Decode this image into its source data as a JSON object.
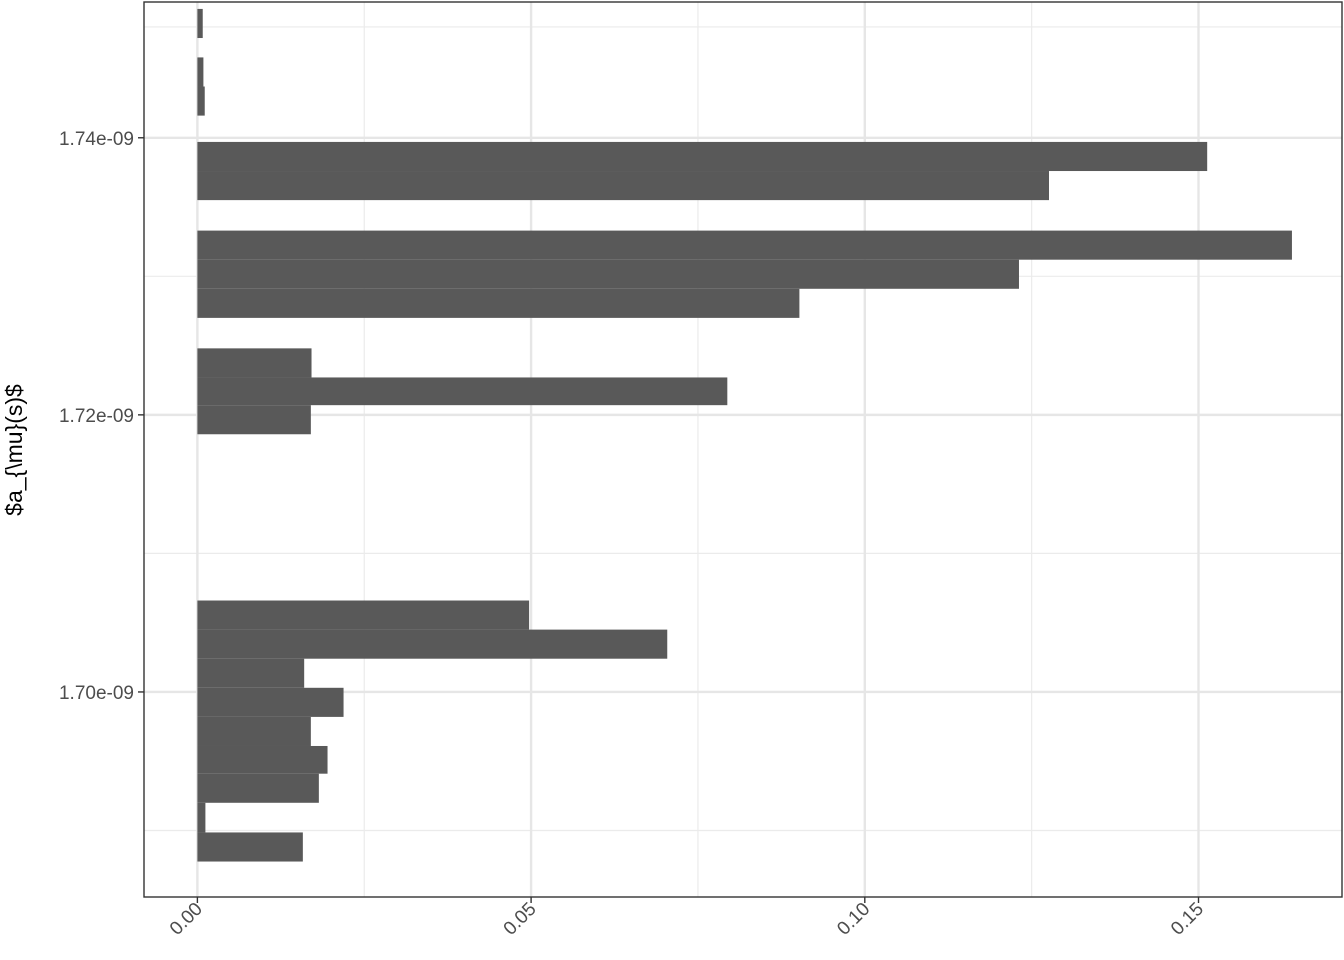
{
  "chart_data": {
    "type": "bar",
    "orientation": "horizontal",
    "xlabel": "",
    "ylabel": "$a_{\\mu}(s)$",
    "xlim": [
      -0.008,
      0.1715
    ],
    "ylim": [
      1.6852e-09,
      1.7498e-09
    ],
    "x_ticks": [
      {
        "value": 0.0,
        "label": "0.00"
      },
      {
        "value": 0.05,
        "label": "0.05"
      },
      {
        "value": 0.1,
        "label": "0.10"
      },
      {
        "value": 0.15,
        "label": "0.15"
      }
    ],
    "x_minor_ticks": [
      0.025,
      0.075,
      0.125
    ],
    "y_ticks": [
      {
        "value": 1.7e-09,
        "label": "1.70e-09"
      },
      {
        "value": 1.72e-09,
        "label": "1.72e-09"
      },
      {
        "value": 1.74e-09,
        "label": "1.74e-09"
      }
    ],
    "y_minor_ticks": [
      1.69e-09,
      1.71e-09,
      1.73e-09,
      1.748e-09
    ],
    "grid": true,
    "theme": "bw",
    "bar_color": "#595959",
    "bars": [
      {
        "y_low": 1.68776e-09,
        "y_high": 1.68986e-09,
        "value": 0.0158
      },
      {
        "y_low": 1.68986e-09,
        "y_high": 1.692e-09,
        "value": 0.0012
      },
      {
        "y_low": 1.692e-09,
        "y_high": 1.6941e-09,
        "value": 0.0182
      },
      {
        "y_low": 1.6941e-09,
        "y_high": 1.6961e-09,
        "value": 0.0195
      },
      {
        "y_low": 1.6961e-09,
        "y_high": 1.6982e-09,
        "value": 0.017
      },
      {
        "y_low": 1.6982e-09,
        "y_high": 1.7003e-09,
        "value": 0.0219
      },
      {
        "y_low": 1.7003e-09,
        "y_high": 1.7024e-09,
        "value": 0.016
      },
      {
        "y_low": 1.7024e-09,
        "y_high": 1.7045e-09,
        "value": 0.0704
      },
      {
        "y_low": 1.7045e-09,
        "y_high": 1.7066e-09,
        "value": 0.0497
      },
      {
        "y_low": 1.7186e-09,
        "y_high": 1.7207e-09,
        "value": 0.017
      },
      {
        "y_low": 1.7207e-09,
        "y_high": 1.7227e-09,
        "value": 0.0794
      },
      {
        "y_low": 1.7227e-09,
        "y_high": 1.7248e-09,
        "value": 0.0171
      },
      {
        "y_low": 1.727e-09,
        "y_high": 1.7291e-09,
        "value": 0.0902
      },
      {
        "y_low": 1.7291e-09,
        "y_high": 1.7312e-09,
        "value": 0.1231
      },
      {
        "y_low": 1.7312e-09,
        "y_high": 1.7333e-09,
        "value": 0.164
      },
      {
        "y_low": 1.7355e-09,
        "y_high": 1.7376e-09,
        "value": 0.1276
      },
      {
        "y_low": 1.7376e-09,
        "y_high": 1.7397e-09,
        "value": 0.1513
      },
      {
        "y_low": 1.7416e-09,
        "y_high": 1.7437e-09,
        "value": 0.0011
      },
      {
        "y_low": 1.7437e-09,
        "y_high": 1.7458e-09,
        "value": 0.0009
      },
      {
        "y_low": 1.7472e-09,
        "y_high": 1.7493e-09,
        "value": 0.0008
      }
    ]
  }
}
